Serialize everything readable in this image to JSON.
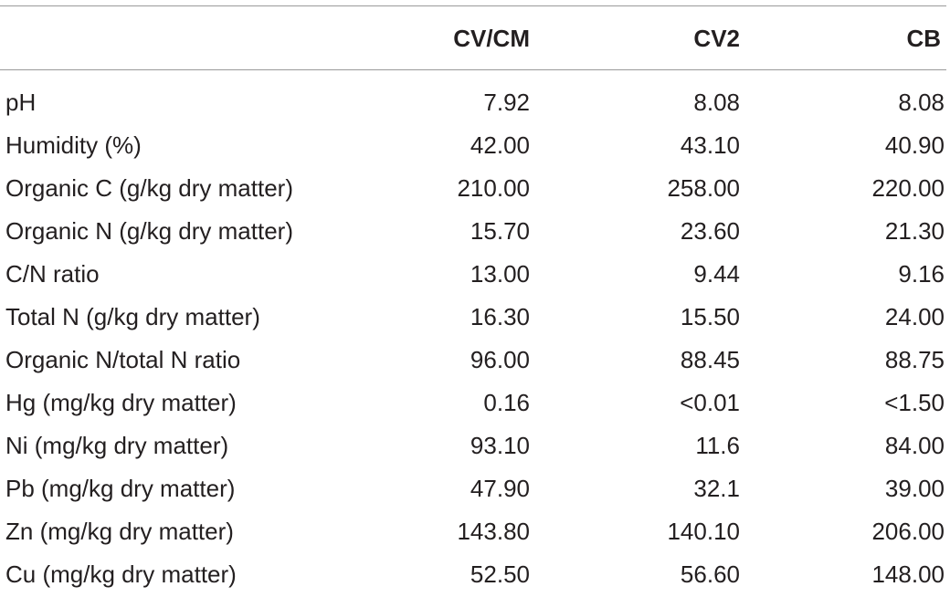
{
  "table": {
    "headers": [
      "",
      "CV/CM",
      "CV2",
      "CB"
    ],
    "rows": [
      {
        "label": "pH",
        "values": [
          "7.92",
          "8.08",
          "8.08"
        ]
      },
      {
        "label": "Humidity (%)",
        "values": [
          "42.00",
          "43.10",
          "40.90"
        ]
      },
      {
        "label": "Organic C (g/kg dry matter)",
        "values": [
          "210.00",
          "258.00",
          "220.00"
        ]
      },
      {
        "label": "Organic N (g/kg dry matter)",
        "values": [
          "15.70",
          "23.60",
          "21.30"
        ]
      },
      {
        "label": "C/N ratio",
        "values": [
          "13.00",
          "9.44",
          "9.16"
        ]
      },
      {
        "label": "Total N (g/kg dry matter)",
        "values": [
          "16.30",
          "15.50",
          "24.00"
        ]
      },
      {
        "label": "Organic N/total N ratio",
        "values": [
          "96.00",
          "88.45",
          "88.75"
        ]
      },
      {
        "label": "Hg (mg/kg dry matter)",
        "values": [
          "0.16",
          "<0.01",
          "<1.50"
        ]
      },
      {
        "label": "Ni (mg/kg dry matter)",
        "values": [
          "93.10",
          "11.6",
          "84.00"
        ]
      },
      {
        "label": "Pb (mg/kg dry matter)",
        "values": [
          "47.90",
          "32.1",
          "39.00"
        ]
      },
      {
        "label": "Zn (mg/kg dry matter)",
        "values": [
          "143.80",
          "140.10",
          "206.00"
        ]
      },
      {
        "label": "Cu (mg/kg dry matter)",
        "values": [
          "52.50",
          "56.60",
          "148.00"
        ]
      }
    ]
  }
}
